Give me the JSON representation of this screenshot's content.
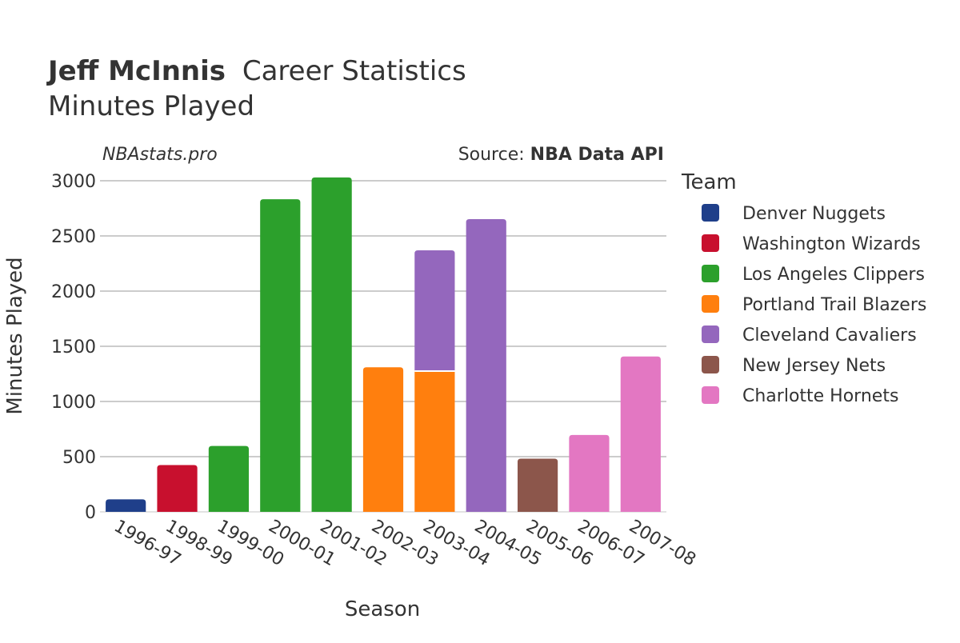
{
  "title": {
    "player": "Jeff McInnis",
    "suffix": "Career Statistics",
    "subtitle": "Minutes Played"
  },
  "watermark": "NBAstats.pro",
  "source": {
    "prefix": "Source: ",
    "name": "NBA Data API"
  },
  "legend_title": "Team",
  "colors": {
    "Denver Nuggets": "#1f3f8a",
    "Washington Wizards": "#c8102e",
    "Los Angeles Clippers": "#2ca02c",
    "Portland Trail Blazers": "#ff7f0e",
    "Cleveland Cavaliers": "#9467bd",
    "New Jersey Nets": "#8c564b",
    "Charlotte Hornets": "#e377c2"
  },
  "chart_data": {
    "type": "bar",
    "stacked": true,
    "xlabel": "Season",
    "ylabel": "Minutes Played",
    "ylim": [
      0,
      3000
    ],
    "yticks": [
      0,
      500,
      1000,
      1500,
      2000,
      2500,
      3000
    ],
    "grid": true,
    "legend_position": "right",
    "categories": [
      "1996-97",
      "1998-99",
      "1999-00",
      "2000-01",
      "2001-02",
      "2002-03",
      "2003-04",
      "2004-05",
      "2005-06",
      "2006-07",
      "2007-08"
    ],
    "series": [
      {
        "name": "Denver Nuggets",
        "values": [
          113,
          null,
          null,
          null,
          null,
          null,
          null,
          null,
          null,
          null,
          null
        ]
      },
      {
        "name": "Washington Wizards",
        "values": [
          null,
          424,
          null,
          null,
          null,
          null,
          null,
          null,
          null,
          null,
          null
        ]
      },
      {
        "name": "Los Angeles Clippers",
        "values": [
          null,
          null,
          597,
          2832,
          3030,
          null,
          null,
          null,
          null,
          null,
          null
        ]
      },
      {
        "name": "Portland Trail Blazers",
        "values": [
          null,
          null,
          null,
          null,
          null,
          1310,
          1275,
          null,
          null,
          null,
          null
        ]
      },
      {
        "name": "Cleveland Cavaliers",
        "values": [
          null,
          null,
          null,
          null,
          null,
          null,
          1095,
          2652,
          null,
          null,
          null
        ]
      },
      {
        "name": "New Jersey Nets",
        "values": [
          null,
          null,
          null,
          null,
          null,
          null,
          null,
          null,
          482,
          null,
          null
        ]
      },
      {
        "name": "Charlotte Hornets",
        "values": [
          null,
          null,
          null,
          null,
          null,
          null,
          null,
          null,
          null,
          697,
          1408
        ]
      }
    ]
  }
}
